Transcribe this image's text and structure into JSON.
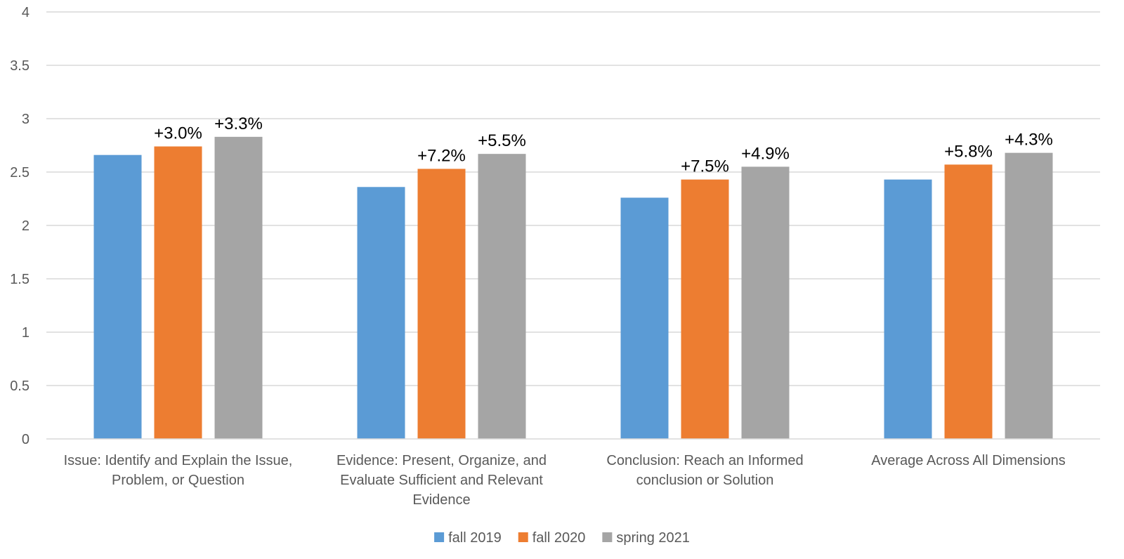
{
  "chart_data": {
    "type": "bar",
    "categories": [
      [
        "Issue: Identify and Explain the Issue,",
        "Problem, or Question"
      ],
      [
        "Evidence: Present, Organize, and",
        "Evaluate Sufficient and Relevant",
        "Evidence"
      ],
      [
        "Conclusion: Reach an Informed",
        "conclusion or Solution"
      ],
      [
        "Average Across All Dimensions"
      ]
    ],
    "series": [
      {
        "name": "fall 2019",
        "color": "#5B9BD5",
        "values": [
          2.66,
          2.36,
          2.26,
          2.43
        ],
        "labels": [
          "",
          "",
          "",
          ""
        ]
      },
      {
        "name": "fall 2020",
        "color": "#ED7D31",
        "values": [
          2.74,
          2.53,
          2.43,
          2.57
        ],
        "labels": [
          "+3.0%",
          "+7.2%",
          "+7.5%",
          "+5.8%"
        ]
      },
      {
        "name": "spring 2021",
        "color": "#A5A5A5",
        "values": [
          2.83,
          2.67,
          2.55,
          2.68
        ],
        "labels": [
          "+3.3%",
          "+5.5%",
          "+4.9%",
          "+4.3%"
        ]
      }
    ],
    "ylim": [
      0,
      4
    ],
    "yticks": [
      "0",
      "0.5",
      "1",
      "1.5",
      "2",
      "2.5",
      "3",
      "3.5",
      "4"
    ],
    "grid": true,
    "legend_position": "bottom-center",
    "title": "",
    "xlabel": "",
    "ylabel": ""
  }
}
